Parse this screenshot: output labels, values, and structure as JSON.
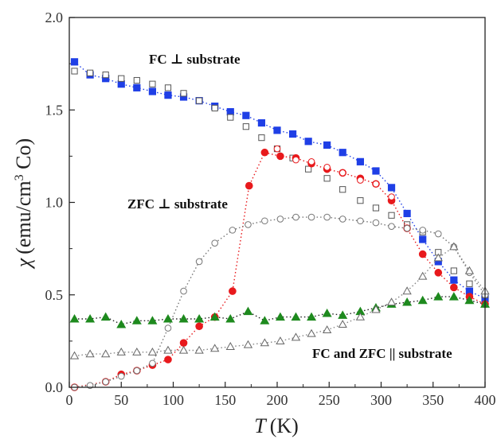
{
  "chart_data": {
    "type": "scatter",
    "xlabel_var": "T",
    "xlabel_unit": "(K)",
    "ylabel_var": "χ",
    "ylabel_unit_pre": "(emu/cm",
    "ylabel_unit_sup": "3",
    "ylabel_unit_post": " Co)",
    "xlim": [
      0,
      400
    ],
    "ylim": [
      0.0,
      2.0
    ],
    "x_ticks": [
      "0",
      "50",
      "100",
      "150",
      "200",
      "250",
      "300",
      "350",
      "400"
    ],
    "y_ticks": [
      "0.0",
      "0.5",
      "1.0",
      "1.5",
      "2.0"
    ],
    "annotations": {
      "fc_perp": "FC ⊥ substrate",
      "zfc_perp": "ZFC ⊥ substrate",
      "parallel": "FC and ZFC || substrate"
    },
    "series": [
      {
        "marker": "square",
        "filled": true,
        "color": "#1f3fe6",
        "line_color": "#1f3fe6",
        "x": [
          5,
          20,
          35,
          50,
          65,
          80,
          95,
          110,
          125,
          140,
          155,
          170,
          185,
          200,
          215,
          230,
          248,
          263,
          280,
          295,
          310,
          325,
          340,
          355,
          370,
          385,
          400
        ],
        "y": [
          1.76,
          1.69,
          1.67,
          1.64,
          1.62,
          1.6,
          1.58,
          1.57,
          1.55,
          1.52,
          1.49,
          1.47,
          1.43,
          1.39,
          1.37,
          1.33,
          1.31,
          1.27,
          1.22,
          1.17,
          1.08,
          0.94,
          0.8,
          0.68,
          0.58,
          0.52,
          0.48
        ]
      },
      {
        "marker": "square",
        "filled": false,
        "color": "#555555",
        "line_color": null,
        "x": [
          5,
          20,
          35,
          50,
          65,
          80,
          95,
          110,
          125,
          140,
          155,
          170,
          185,
          200,
          215,
          230,
          248,
          263,
          280,
          295,
          310,
          325,
          340,
          355,
          370,
          385,
          400
        ],
        "y": [
          1.71,
          1.7,
          1.69,
          1.67,
          1.66,
          1.64,
          1.62,
          1.59,
          1.55,
          1.51,
          1.46,
          1.41,
          1.35,
          1.29,
          1.24,
          1.18,
          1.13,
          1.07,
          1.01,
          0.97,
          0.93,
          0.88,
          0.84,
          0.73,
          0.63,
          0.56,
          0.5
        ]
      },
      {
        "marker": "circle",
        "filled": true,
        "color": "#e8191c",
        "line_color": "#e8191c",
        "x": [
          5,
          35,
          50,
          65,
          80,
          95,
          110,
          125,
          140,
          157,
          173,
          188,
          203,
          218,
          233,
          248,
          263,
          280,
          295,
          310,
          325,
          340,
          355,
          370,
          385,
          400
        ],
        "y": [
          0.0,
          0.03,
          0.07,
          0.09,
          0.12,
          0.15,
          0.24,
          0.33,
          0.38,
          0.52,
          1.09,
          1.27,
          1.25,
          1.24,
          1.21,
          1.18,
          1.16,
          1.13,
          1.1,
          1.01,
          0.86,
          0.72,
          0.62,
          0.54,
          0.49,
          0.45
        ]
      },
      {
        "marker": "circle",
        "filled": false,
        "color": "#e8191c",
        "line_color": null,
        "x": [
          200,
          218,
          233,
          248,
          263,
          280,
          295,
          310
        ],
        "y": [
          1.29,
          1.23,
          1.22,
          1.19,
          1.16,
          1.12,
          1.1,
          1.03
        ]
      },
      {
        "marker": "circle",
        "filled": false,
        "color": "#777777",
        "line_color": "#777777",
        "x": [
          5,
          20,
          35,
          50,
          65,
          80,
          95,
          110,
          125,
          140,
          157,
          172,
          188,
          203,
          218,
          233,
          248,
          263,
          280,
          295,
          310,
          325,
          340,
          355,
          370,
          385,
          400
        ],
        "y": [
          0.0,
          0.01,
          0.03,
          0.06,
          0.09,
          0.13,
          0.32,
          0.52,
          0.68,
          0.78,
          0.85,
          0.88,
          0.9,
          0.91,
          0.92,
          0.92,
          0.92,
          0.91,
          0.9,
          0.89,
          0.87,
          0.86,
          0.85,
          0.83,
          0.76,
          0.62,
          0.5
        ]
      },
      {
        "marker": "triangle",
        "filled": true,
        "color": "#1e8a1e",
        "line_color": "#222222",
        "x": [
          5,
          20,
          35,
          50,
          65,
          80,
          95,
          110,
          125,
          140,
          155,
          172,
          188,
          203,
          218,
          233,
          248,
          263,
          280,
          295,
          310,
          325,
          340,
          355,
          370,
          385,
          400
        ],
        "y": [
          0.37,
          0.37,
          0.38,
          0.34,
          0.36,
          0.36,
          0.37,
          0.37,
          0.37,
          0.38,
          0.37,
          0.41,
          0.36,
          0.38,
          0.38,
          0.38,
          0.4,
          0.39,
          0.41,
          0.43,
          0.45,
          0.46,
          0.47,
          0.49,
          0.49,
          0.47,
          0.45
        ]
      },
      {
        "marker": "triangle",
        "filled": false,
        "color": "#666666",
        "line_color": "#888888",
        "x": [
          5,
          20,
          35,
          50,
          65,
          80,
          95,
          110,
          125,
          140,
          155,
          172,
          188,
          203,
          218,
          233,
          248,
          263,
          280,
          295,
          310,
          325,
          340,
          355,
          370,
          385,
          400
        ],
        "y": [
          0.17,
          0.18,
          0.18,
          0.19,
          0.19,
          0.19,
          0.2,
          0.2,
          0.2,
          0.21,
          0.22,
          0.23,
          0.24,
          0.25,
          0.27,
          0.29,
          0.31,
          0.34,
          0.38,
          0.42,
          0.46,
          0.52,
          0.6,
          0.7,
          0.76,
          0.63,
          0.52
        ]
      }
    ]
  }
}
